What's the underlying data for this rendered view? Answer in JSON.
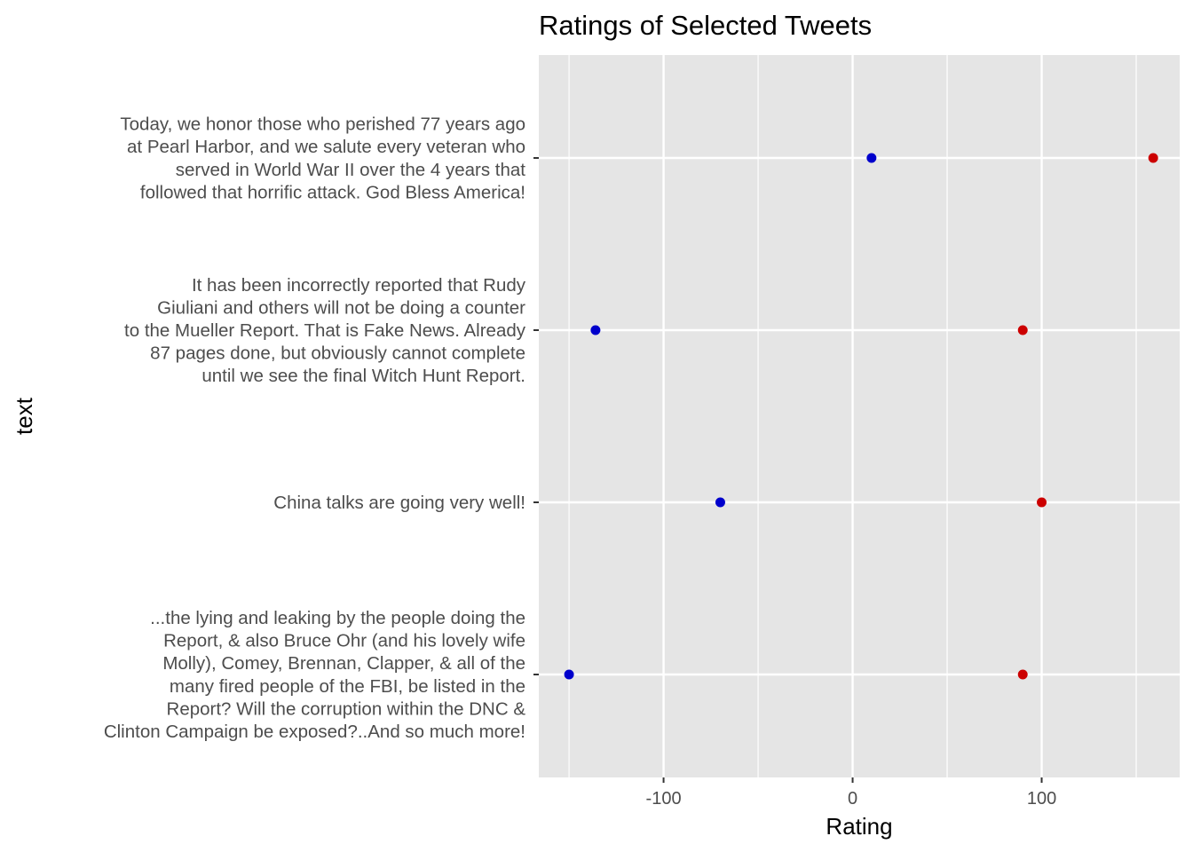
{
  "chart_data": {
    "type": "scatter",
    "title": "Ratings of Selected Tweets",
    "xlabel": "Rating",
    "ylabel": "text",
    "xlim": [
      -166,
      173
    ],
    "x_ticks": [
      -100,
      0,
      100
    ],
    "x_tick_labels": [
      "-100",
      "0",
      "100"
    ],
    "grid": true,
    "legend": "none",
    "categories": [
      "Today, we honor those who perished 77 years ago at Pearl Harbor, and we salute every veteran who served in World War II over the 4 years that followed that horrific attack. God Bless America!",
      "It has been incorrectly reported that Rudy Giuliani and others will not be doing a counter to the Mueller Report. That is Fake News. Already 87 pages done, but obviously cannot complete until we see the final Witch Hunt Report.",
      "China talks are going very well!",
      "...the lying and leaking by the people doing the Report, & also Bruce Ohr (and his lovely wife Molly), Comey, Brennan, Clapper, & all of the many fired people of the FBI, be listed in the Report? Will the corruption within the DNC & Clinton Campaign be exposed?..And so much more!"
    ],
    "category_lines": [
      [
        "Today, we honor those who perished 77 years ago",
        "at Pearl Harbor, and we salute every veteran who",
        "served in World War II over the 4 years that",
        "followed that horrific attack. God Bless America!"
      ],
      [
        "It has been incorrectly reported that Rudy",
        "Giuliani and others will not be doing a counter",
        "to the Mueller Report. That is Fake News. Already",
        "87 pages done, but obviously cannot complete",
        "until we see the final Witch Hunt Report."
      ],
      [
        "China talks are going very well!"
      ],
      [
        "...the lying and leaking by the people doing the",
        "Report, & also Bruce Ohr (and his lovely wife",
        "Molly), Comey, Brennan, Clapper, & all of the",
        "many fired people of the FBI, be listed in the",
        "Report? Will the corruption within the DNC &",
        "Clinton Campaign be exposed?..And so much more!"
      ]
    ],
    "series": [
      {
        "values": [
          10,
          -136,
          -70,
          -150
        ],
        "color": "#0000cc"
      },
      {
        "values": [
          159,
          90,
          100,
          90
        ],
        "color": "#cc0000"
      }
    ]
  }
}
